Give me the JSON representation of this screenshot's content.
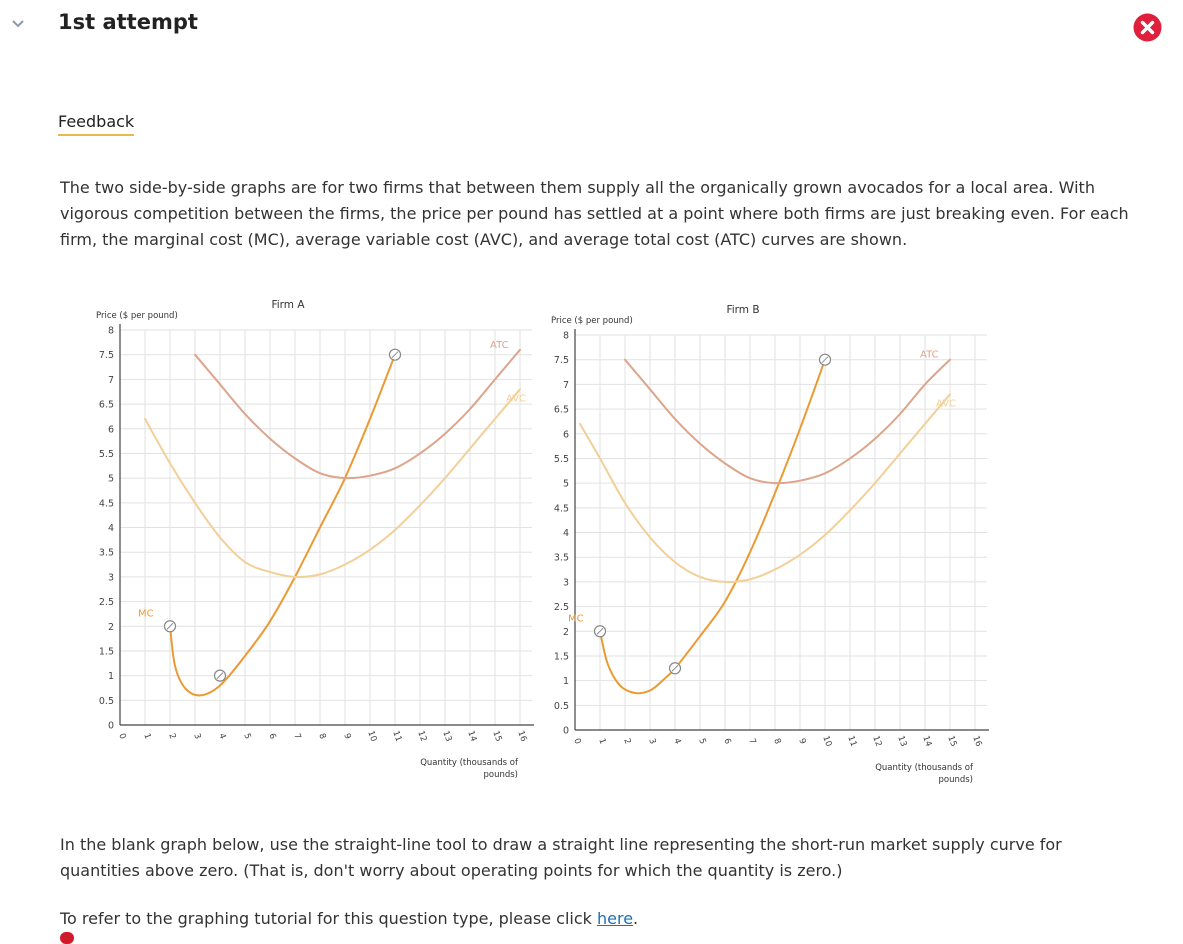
{
  "header": {
    "title": "1st attempt",
    "toggle_icon": "chevron-down-icon",
    "status_icon": "close-circle-icon",
    "status_color": "#e01f3d"
  },
  "feedback": {
    "label": "Feedback"
  },
  "intro_text": "The two side-by-side graphs are for two firms that between them supply all the organically grown avocados for a local area. With vigorous competition between the firms, the price per pound has settled at a point where both firms are just breaking even. For each firm, the marginal cost (MC), average variable cost (AVC), and average total cost (ATC) curves are shown.",
  "instructions": "In the blank graph below, use the straight-line tool to draw a straight line representing the short-run market supply curve for quantities above zero. (That is, don't worry about operating points for which the quantity is zero.)",
  "tutorial": {
    "text": "To refer to the graphing tutorial for this question type, please click ",
    "link": "here",
    "end": "."
  },
  "colors": {
    "mc": "#eb9a33",
    "atc": "#dca58c",
    "avc": "#f3cf98",
    "grid": "#e2e2e2",
    "axis": "#444444"
  },
  "chart_data": [
    {
      "type": "line",
      "title": "Firm A",
      "xlabel": "Quantity (thousands of pounds)",
      "ylabel": "Price ($ per pound)",
      "xlim": [
        0,
        16
      ],
      "ylim": [
        0,
        8
      ],
      "x_ticks": [
        "0",
        "1",
        "2",
        "3",
        "4",
        "5",
        "6",
        "7",
        "8",
        "9",
        "10",
        "11",
        "12",
        "13",
        "14",
        "15",
        "16"
      ],
      "y_ticks": [
        "0",
        "0.5",
        "1",
        "1.5",
        "2",
        "2.5",
        "3",
        "3.5",
        "4",
        "4.5",
        "5",
        "5.5",
        "6",
        "6.5",
        "7",
        "7.5",
        "8"
      ],
      "grid": true,
      "series": [
        {
          "name": "MC",
          "x": [
            2,
            2.2,
            2.6,
            3.2,
            4,
            5,
            6,
            7,
            8,
            9,
            10,
            11
          ],
          "y": [
            2,
            1.2,
            0.75,
            0.6,
            0.8,
            1.4,
            2.1,
            3,
            4,
            5,
            6.2,
            7.5
          ],
          "handles": [
            [
              2,
              2
            ],
            [
              4,
              1
            ],
            [
              11,
              7.5
            ]
          ]
        },
        {
          "name": "ATC",
          "x": [
            3,
            4,
            5,
            6,
            7,
            8,
            9,
            10,
            11,
            12,
            13,
            14,
            15,
            16
          ],
          "y": [
            7.5,
            6.9,
            6.3,
            5.8,
            5.4,
            5.1,
            5,
            5.05,
            5.2,
            5.5,
            5.9,
            6.4,
            7,
            7.6
          ]
        },
        {
          "name": "AVC",
          "x": [
            1,
            2,
            3,
            4,
            5,
            6,
            7,
            8,
            9,
            10,
            11,
            12,
            13,
            14,
            15,
            16
          ],
          "y": [
            6.2,
            5.3,
            4.5,
            3.8,
            3.3,
            3.1,
            3,
            3.05,
            3.25,
            3.55,
            3.95,
            4.45,
            5,
            5.6,
            6.2,
            6.8
          ]
        }
      ]
    },
    {
      "type": "line",
      "title": "Firm B",
      "xlabel": "Quantity (thousands of pounds)",
      "ylabel": "Price ($ per pound)",
      "xlim": [
        0,
        16
      ],
      "ylim": [
        0,
        8
      ],
      "x_ticks": [
        "0",
        "1",
        "2",
        "3",
        "4",
        "5",
        "6",
        "7",
        "8",
        "9",
        "10",
        "11",
        "12",
        "13",
        "14",
        "15",
        "16"
      ],
      "y_ticks": [
        "0",
        "0.5",
        "1",
        "1.5",
        "2",
        "2.5",
        "3",
        "3.5",
        "4",
        "4.5",
        "5",
        "5.5",
        "6",
        "6.5",
        "7",
        "7.5",
        "8"
      ],
      "grid": true,
      "series": [
        {
          "name": "MC",
          "x": [
            1,
            1.3,
            1.8,
            2.4,
            3,
            3.5,
            4,
            5,
            6,
            7,
            8,
            9,
            10
          ],
          "y": [
            2,
            1.35,
            0.9,
            0.75,
            0.8,
            1,
            1.25,
            1.9,
            2.6,
            3.6,
            4.8,
            6.1,
            7.5
          ],
          "handles": [
            [
              1,
              2
            ],
            [
              4,
              1.25
            ],
            [
              10,
              7.5
            ]
          ]
        },
        {
          "name": "ATC",
          "x": [
            2,
            3,
            4,
            5,
            6,
            7,
            8,
            9,
            10,
            11,
            12,
            13,
            14,
            15
          ],
          "y": [
            7.5,
            6.9,
            6.3,
            5.8,
            5.4,
            5.1,
            5,
            5.05,
            5.2,
            5.5,
            5.9,
            6.4,
            7,
            7.5
          ]
        },
        {
          "name": "AVC",
          "x": [
            0.2,
            1,
            2,
            3,
            4,
            5,
            6,
            7,
            8,
            9,
            10,
            11,
            12,
            13,
            14,
            15
          ],
          "y": [
            6.2,
            5.5,
            4.6,
            3.9,
            3.4,
            3.1,
            3,
            3.05,
            3.25,
            3.55,
            3.95,
            4.45,
            5,
            5.6,
            6.2,
            6.8
          ]
        }
      ]
    }
  ]
}
